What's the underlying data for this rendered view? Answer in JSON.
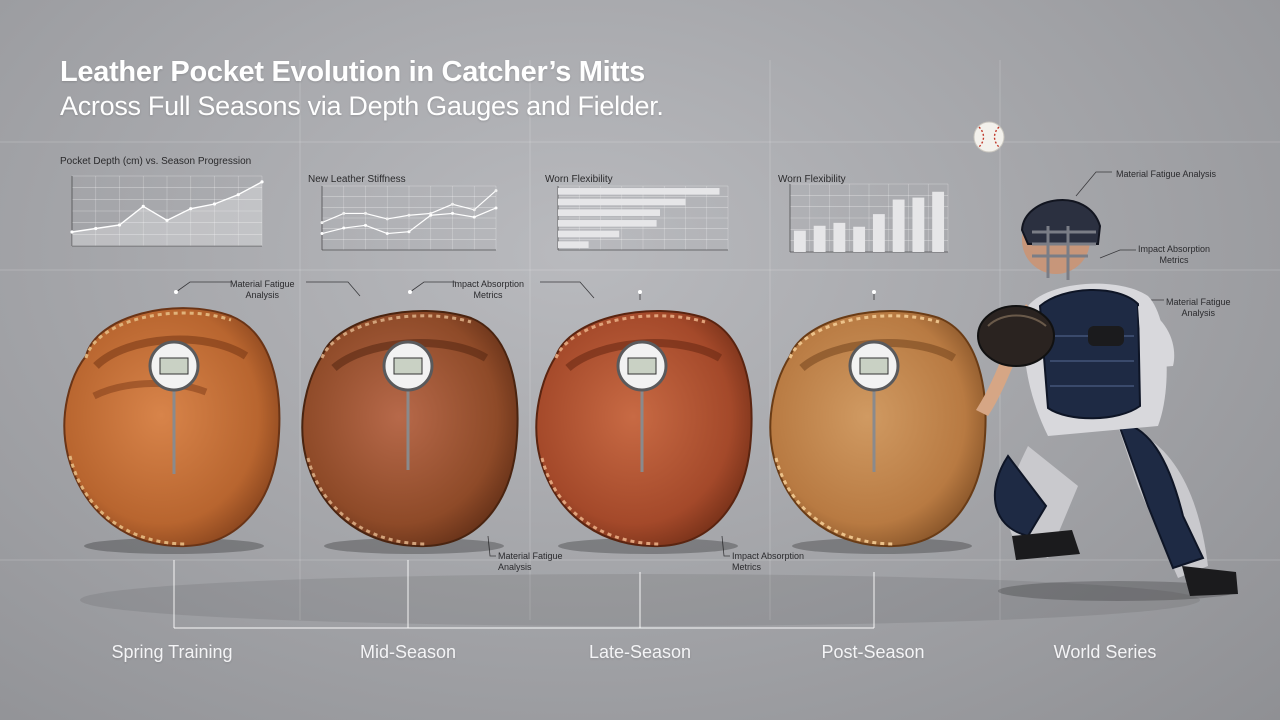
{
  "header": {
    "title": "Leather Pocket Evolution in Catcher’s Mitts",
    "subtitle": "Across Full Seasons via Depth Gauges and Fielder."
  },
  "charts": {
    "c1_title": "Pocket Depth (cm) vs. Season Progression",
    "c2_title": "New Leather Stiffness",
    "c3_title": "Worn Flexibility",
    "c4_title": "Worn Flexibility"
  },
  "chart_data": [
    {
      "type": "area",
      "title": "Pocket Depth (cm) vs. Season Progression",
      "x": [
        0,
        1,
        2,
        3,
        4,
        5,
        6,
        7,
        8
      ],
      "series": [
        {
          "values": [
            12,
            15,
            18,
            34,
            22,
            32,
            36,
            44,
            55
          ]
        }
      ],
      "ylim": [
        0,
        60
      ],
      "grid": true
    },
    {
      "type": "line",
      "title": "New Leather Stiffness",
      "x": [
        0,
        1,
        2,
        3,
        4,
        5,
        6,
        7,
        8
      ],
      "series": [
        {
          "values": [
            30,
            40,
            40,
            34,
            38,
            40,
            50,
            44,
            65
          ]
        },
        {
          "values": [
            18,
            24,
            27,
            18,
            20,
            38,
            40,
            36,
            46
          ]
        }
      ],
      "ylim": [
        0,
        70
      ],
      "grid": true
    },
    {
      "type": "bar",
      "orientation": "horizontal",
      "title": "Worn Flexibility",
      "values": [
        95,
        75,
        60,
        58,
        36,
        18
      ],
      "xlim": [
        0,
        100
      ],
      "grid": true
    },
    {
      "type": "bar",
      "title": "Worn Flexibility",
      "values": [
        22,
        27,
        30,
        26,
        39,
        54,
        56,
        62
      ],
      "ylim": [
        0,
        70
      ],
      "grid": true
    }
  ],
  "annotations": {
    "a1": "Material Fatigue\nAnalysis",
    "a2": "Impact Absorption\nMetrics",
    "a3": "Material Fatigue\nAnalysis",
    "a4": "Impact Absorption\nMetrics",
    "a5": "Material Fatigue Analysis",
    "a6": "Impact Absorption\nMetrics",
    "a7": "Material Fatigue\nAnalysis"
  },
  "stages": [
    "Spring Training",
    "Mid-Season",
    "Late-Season",
    "Post-Season",
    "World Series"
  ],
  "colors": {
    "leather_new": "#b8652f",
    "leather_mid": "#8e4a28",
    "leather_late": "#a4492a",
    "leather_post": "#b87a42",
    "bar": "#e6e6e8"
  },
  "icons": {
    "gauge": "dial-gauge-icon",
    "ball": "baseball-icon",
    "player": "catcher-figure"
  }
}
